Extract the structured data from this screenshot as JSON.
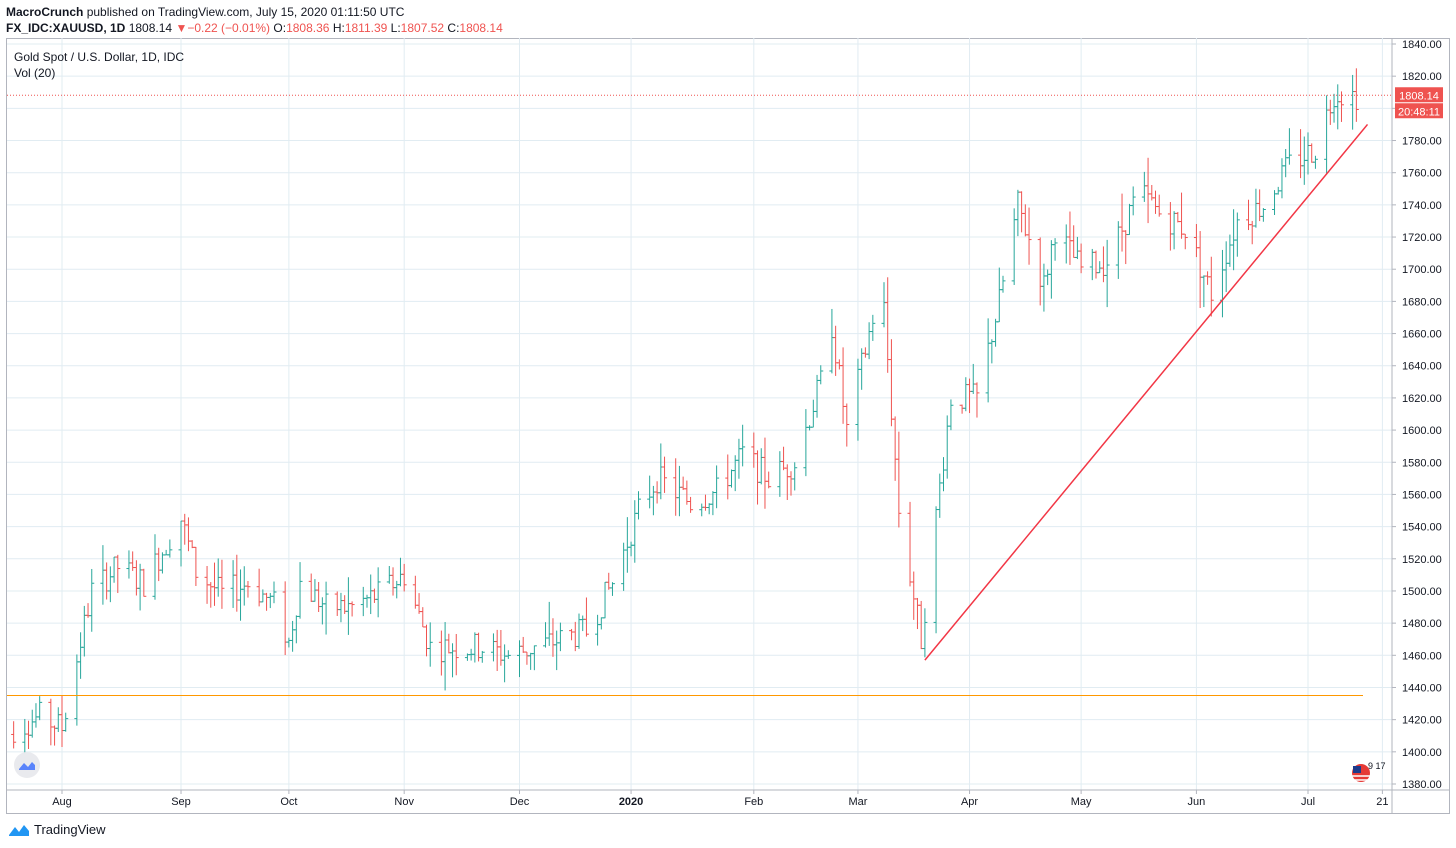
{
  "header": {
    "publisher": "MacroCrunch",
    "published_text": "published on TradingView.com, July 15, 2020 01:11:50 UTC",
    "symbol": "FX_IDC:XAUUSD, 1D",
    "last": "1808.14",
    "change": "−0.22 (−0.01%)",
    "o_label": "O:",
    "o_value": "1808.36",
    "h_label": "H:",
    "h_value": "1811.39",
    "l_label": "L:",
    "l_value": "1807.52",
    "c_label": "C:",
    "c_value": "1808.14"
  },
  "legend": {
    "title": "Gold Spot / U.S. Dollar, 1D, IDC",
    "volume": "Vol (20)"
  },
  "price_badge": "1808.14",
  "time_badge": "20:48:11",
  "footer": {
    "brand": "TradingView"
  },
  "corner_badge": "9 17",
  "colors": {
    "up": "#26a69a",
    "down": "#ef5350",
    "trendline": "#f23645",
    "hline": "#ff9800",
    "grid": "#e1ecf2"
  },
  "icons": [
    "tradingview-logo-icon",
    "chart-settings-icon",
    "us-flag-icon"
  ],
  "chart_data": {
    "type": "ohlc",
    "title": "Gold Spot / U.S. Dollar, 1D, IDC",
    "ylim": [
      1380,
      1840
    ],
    "y_ticks": [
      "1380.00",
      "1400.00",
      "1420.00",
      "1440.00",
      "1460.00",
      "1480.00",
      "1500.00",
      "1520.00",
      "1540.00",
      "1560.00",
      "1580.00",
      "1600.00",
      "1620.00",
      "1640.00",
      "1660.00",
      "1680.00",
      "1700.00",
      "1720.00",
      "1740.00",
      "1760.00",
      "1780.00",
      "1800.00",
      "1820.00",
      "1840.00"
    ],
    "x_ticks": [
      {
        "label": "Aug",
        "date": "2019-08-01"
      },
      {
        "label": "Sep",
        "date": "2019-09-02"
      },
      {
        "label": "Oct",
        "date": "2019-10-01"
      },
      {
        "label": "Nov",
        "date": "2019-11-01"
      },
      {
        "label": "Dec",
        "date": "2019-12-02"
      },
      {
        "label": "2020",
        "date": "2020-01-01",
        "bold": true
      },
      {
        "label": "Feb",
        "date": "2020-02-03"
      },
      {
        "label": "Mar",
        "date": "2020-03-02"
      },
      {
        "label": "Apr",
        "date": "2020-04-01"
      },
      {
        "label": "May",
        "date": "2020-05-01"
      },
      {
        "label": "Jun",
        "date": "2020-06-01"
      },
      {
        "label": "Jul",
        "date": "2020-07-01"
      },
      {
        "label": "21",
        "date": "2020-07-21"
      }
    ],
    "last_price": 1808.14,
    "horizontal_line": 1435,
    "trendline": {
      "start": {
        "date": "2020-03-20",
        "price": 1457
      },
      "end": {
        "date": "2020-07-17",
        "price": 1790
      }
    },
    "anchors": [
      {
        "date": "2019-07-16",
        "price": 1410
      },
      {
        "date": "2019-07-26",
        "price": 1422
      },
      {
        "date": "2019-08-01",
        "price": 1415
      },
      {
        "date": "2019-08-09",
        "price": 1500
      },
      {
        "date": "2019-08-16",
        "price": 1515
      },
      {
        "date": "2019-08-23",
        "price": 1505
      },
      {
        "date": "2019-09-02",
        "price": 1545
      },
      {
        "date": "2019-09-06",
        "price": 1512
      },
      {
        "date": "2019-09-13",
        "price": 1498
      },
      {
        "date": "2019-09-20",
        "price": 1505
      },
      {
        "date": "2019-09-27",
        "price": 1492
      },
      {
        "date": "2019-10-01",
        "price": 1468
      },
      {
        "date": "2019-10-04",
        "price": 1505
      },
      {
        "date": "2019-10-11",
        "price": 1490
      },
      {
        "date": "2019-10-18",
        "price": 1490
      },
      {
        "date": "2019-10-25",
        "price": 1498
      },
      {
        "date": "2019-11-01",
        "price": 1510
      },
      {
        "date": "2019-11-08",
        "price": 1465
      },
      {
        "date": "2019-11-15",
        "price": 1465
      },
      {
        "date": "2019-11-22",
        "price": 1465
      },
      {
        "date": "2019-11-29",
        "price": 1460
      },
      {
        "date": "2019-12-06",
        "price": 1465
      },
      {
        "date": "2019-12-13",
        "price": 1470
      },
      {
        "date": "2019-12-20",
        "price": 1475
      },
      {
        "date": "2019-12-27",
        "price": 1505
      },
      {
        "date": "2020-01-03",
        "price": 1550
      },
      {
        "date": "2020-01-08",
        "price": 1570
      },
      {
        "date": "2020-01-17",
        "price": 1555
      },
      {
        "date": "2020-01-24",
        "price": 1562
      },
      {
        "date": "2020-01-31",
        "price": 1585
      },
      {
        "date": "2020-02-07",
        "price": 1570
      },
      {
        "date": "2020-02-14",
        "price": 1580
      },
      {
        "date": "2020-02-21",
        "price": 1630
      },
      {
        "date": "2020-02-24",
        "price": 1665
      },
      {
        "date": "2020-02-28",
        "price": 1600
      },
      {
        "date": "2020-03-06",
        "price": 1670
      },
      {
        "date": "2020-03-09",
        "price": 1675
      },
      {
        "date": "2020-03-13",
        "price": 1550
      },
      {
        "date": "2020-03-19",
        "price": 1470
      },
      {
        "date": "2020-03-24",
        "price": 1565
      },
      {
        "date": "2020-03-27",
        "price": 1620
      },
      {
        "date": "2020-04-03",
        "price": 1620
      },
      {
        "date": "2020-04-09",
        "price": 1680
      },
      {
        "date": "2020-04-14",
        "price": 1740
      },
      {
        "date": "2020-04-21",
        "price": 1690
      },
      {
        "date": "2020-04-24",
        "price": 1725
      },
      {
        "date": "2020-05-01",
        "price": 1700
      },
      {
        "date": "2020-05-08",
        "price": 1705
      },
      {
        "date": "2020-05-15",
        "price": 1740
      },
      {
        "date": "2020-05-18",
        "price": 1745
      },
      {
        "date": "2020-05-22",
        "price": 1735
      },
      {
        "date": "2020-05-29",
        "price": 1725
      },
      {
        "date": "2020-06-05",
        "price": 1685
      },
      {
        "date": "2020-06-12",
        "price": 1730
      },
      {
        "date": "2020-06-19",
        "price": 1740
      },
      {
        "date": "2020-06-26",
        "price": 1765
      },
      {
        "date": "2020-07-03",
        "price": 1775
      },
      {
        "date": "2020-07-08",
        "price": 1810
      },
      {
        "date": "2020-07-14",
        "price": 1808
      }
    ]
  }
}
